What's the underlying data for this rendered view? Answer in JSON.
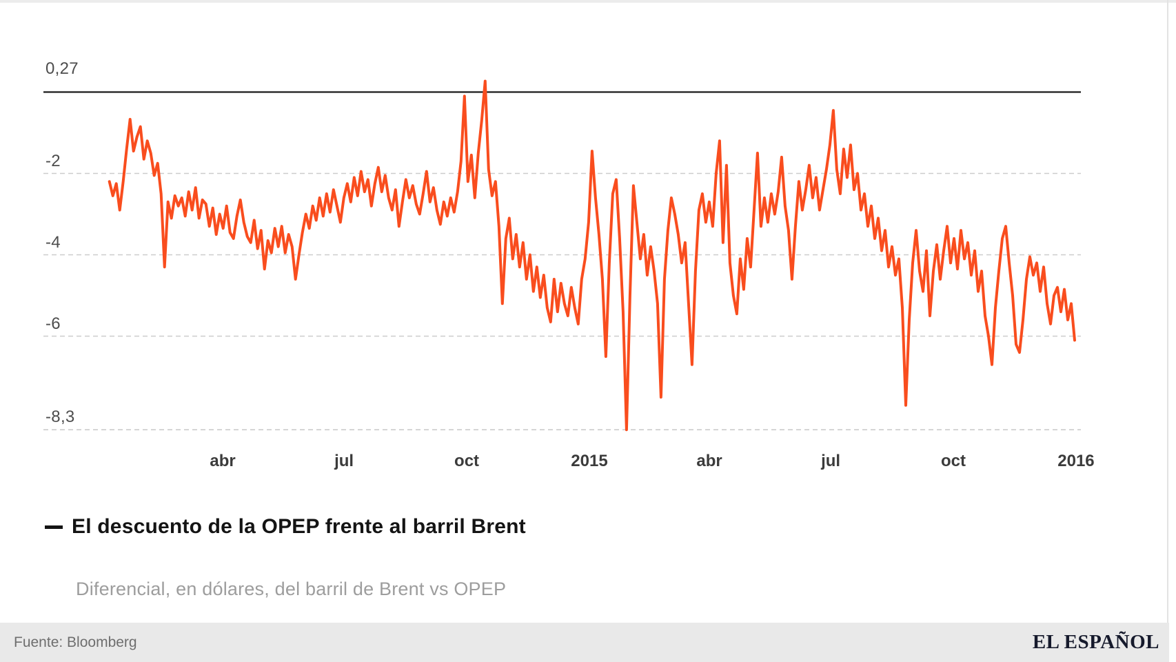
{
  "y_axis_labels": [
    {
      "text": "0,27",
      "value": 0.27
    },
    {
      "text": "-2",
      "value": -2
    },
    {
      "text": "-4",
      "value": -4
    },
    {
      "text": "-6",
      "value": -6
    },
    {
      "text": "-8,3",
      "value": -8.3
    }
  ],
  "x_axis_labels": [
    {
      "text": "abr",
      "day": 90
    },
    {
      "text": "jul",
      "day": 181
    },
    {
      "text": "oct",
      "day": 273
    },
    {
      "text": "2015",
      "day": 365
    },
    {
      "text": "abr",
      "day": 455
    },
    {
      "text": "jul",
      "day": 546
    },
    {
      "text": "oct",
      "day": 638
    },
    {
      "text": "2016",
      "day": 730
    }
  ],
  "legend": {
    "mark": "—",
    "title": "El descuento de la OPEP frente al barril Brent"
  },
  "subtitle": "Diferencial, en dólares, del barril de Brent vs OPEP",
  "footer": {
    "source": "Fuente: Bloomberg",
    "brand": "EL ESPAÑOL"
  },
  "colors": {
    "line": "#f94d1e",
    "zero_line": "#2f2f2f",
    "grid": "#cccccc",
    "title": "#141414",
    "subtitle": "#9d9d9d",
    "source": "#6e6e6e",
    "brand": "#161a2c"
  },
  "chart_data": {
    "type": "line",
    "title": "El descuento de la OPEP frente al barril Brent",
    "subtitle": "Diferencial, en dólares, del barril de Brent vs OPEP",
    "source": "Bloomberg",
    "unit": "dólares por barril (diferencial Brent vs OPEP)",
    "x_start": "2014-01-06",
    "x_end": "2015-12-31",
    "day_start": 5,
    "day_end": 729,
    "ylim": [
      -8.3,
      0.27
    ],
    "y_max_label": "0,27",
    "y_min_label": "-8,3",
    "solid_gridlines": [
      0
    ],
    "dashed_gridlines": [
      -2,
      -4,
      -6,
      -8.3
    ],
    "x_ticks": [
      "abr 2014",
      "jul 2014",
      "oct 2014",
      "2015",
      "abr 2015",
      "jul 2015",
      "oct 2015",
      "2016"
    ],
    "legend_position": "below",
    "grid": true,
    "values": [
      -2.2,
      -2.55,
      -2.25,
      -2.9,
      -2.2,
      -1.4,
      -0.67,
      -1.45,
      -1.1,
      -0.85,
      -1.65,
      -1.2,
      -1.5,
      -2.05,
      -1.75,
      -2.5,
      -4.3,
      -2.7,
      -3.1,
      -2.55,
      -2.8,
      -2.6,
      -3.05,
      -2.45,
      -2.9,
      -2.35,
      -3.1,
      -2.65,
      -2.75,
      -3.3,
      -2.85,
      -3.5,
      -3.0,
      -3.35,
      -2.8,
      -3.45,
      -3.6,
      -3.05,
      -2.65,
      -3.2,
      -3.55,
      -3.7,
      -3.15,
      -3.85,
      -3.4,
      -4.35,
      -3.65,
      -3.95,
      -3.35,
      -3.8,
      -3.3,
      -3.95,
      -3.5,
      -3.8,
      -4.6,
      -4.0,
      -3.45,
      -3.0,
      -3.35,
      -2.8,
      -3.15,
      -2.6,
      -3.05,
      -2.5,
      -2.95,
      -2.4,
      -2.8,
      -3.2,
      -2.6,
      -2.25,
      -2.7,
      -2.1,
      -2.55,
      -1.95,
      -2.45,
      -2.15,
      -2.8,
      -2.25,
      -1.85,
      -2.45,
      -2.05,
      -2.6,
      -2.9,
      -2.4,
      -3.3,
      -2.7,
      -2.15,
      -2.6,
      -2.3,
      -2.75,
      -3.0,
      -2.5,
      -1.95,
      -2.7,
      -2.35,
      -2.9,
      -3.25,
      -2.7,
      -3.05,
      -2.6,
      -2.95,
      -2.45,
      -1.7,
      -0.1,
      -2.2,
      -1.55,
      -2.6,
      -1.5,
      -0.7,
      0.27,
      -1.9,
      -2.55,
      -2.2,
      -3.3,
      -5.2,
      -3.6,
      -3.1,
      -4.1,
      -3.5,
      -4.3,
      -3.7,
      -4.6,
      -4.0,
      -4.9,
      -4.3,
      -5.05,
      -4.5,
      -5.3,
      -5.65,
      -4.6,
      -5.4,
      -4.7,
      -5.2,
      -5.5,
      -4.8,
      -5.3,
      -5.7,
      -4.6,
      -4.1,
      -3.2,
      -1.45,
      -2.6,
      -3.5,
      -4.6,
      -6.5,
      -4.2,
      -2.5,
      -2.15,
      -3.6,
      -5.4,
      -8.3,
      -5.0,
      -2.3,
      -3.2,
      -4.1,
      -3.5,
      -4.5,
      -3.8,
      -4.4,
      -5.2,
      -7.5,
      -4.6,
      -3.4,
      -2.6,
      -3.0,
      -3.5,
      -4.2,
      -3.7,
      -5.2,
      -6.7,
      -4.4,
      -2.9,
      -2.5,
      -3.2,
      -2.7,
      -3.3,
      -2.0,
      -1.2,
      -3.7,
      -1.8,
      -4.2,
      -5.0,
      -5.45,
      -4.1,
      -4.85,
      -3.6,
      -4.3,
      -2.9,
      -1.5,
      -3.3,
      -2.6,
      -3.2,
      -2.5,
      -3.0,
      -2.45,
      -1.6,
      -2.8,
      -3.4,
      -4.6,
      -3.3,
      -2.2,
      -2.9,
      -2.4,
      -1.8,
      -2.6,
      -2.1,
      -2.9,
      -2.4,
      -1.9,
      -1.3,
      -0.45,
      -1.9,
      -2.5,
      -1.4,
      -2.1,
      -1.3,
      -2.4,
      -2.0,
      -2.9,
      -2.5,
      -3.3,
      -2.8,
      -3.6,
      -3.1,
      -3.9,
      -3.4,
      -4.3,
      -3.8,
      -4.5,
      -4.1,
      -5.3,
      -7.7,
      -5.6,
      -4.2,
      -3.4,
      -4.4,
      -4.9,
      -3.9,
      -5.5,
      -4.4,
      -3.75,
      -4.6,
      -3.9,
      -3.3,
      -4.2,
      -3.6,
      -4.35,
      -3.4,
      -4.1,
      -3.7,
      -4.5,
      -3.9,
      -4.9,
      -4.4,
      -5.5,
      -6.0,
      -6.7,
      -5.3,
      -4.4,
      -3.6,
      -3.3,
      -4.2,
      -5.0,
      -6.2,
      -6.4,
      -5.6,
      -4.6,
      -4.05,
      -4.5,
      -4.2,
      -4.9,
      -4.3,
      -5.2,
      -5.7,
      -5.0,
      -4.8,
      -5.4,
      -4.85,
      -5.6,
      -5.2,
      -6.1
    ]
  }
}
